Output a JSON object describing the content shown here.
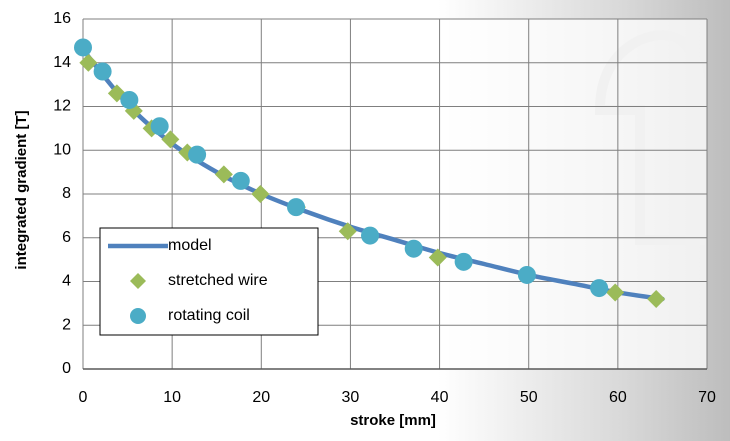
{
  "chart_data": {
    "type": "scatter",
    "x_label": "stroke [mm]",
    "y_label": "integrated gradient [T]",
    "xlim": [
      0,
      70
    ],
    "xticks": [
      0,
      10,
      20,
      30,
      40,
      50,
      60,
      70
    ],
    "ylim": [
      0,
      16
    ],
    "yticks": [
      0,
      2,
      4,
      6,
      8,
      10,
      12,
      14,
      16
    ],
    "grid": true,
    "legend": "lower left",
    "series": [
      {
        "name": "model",
        "color": "#4f81bd",
        "marker": "line",
        "x": [
          0,
          5,
          10,
          15,
          20,
          25,
          30,
          35,
          40,
          45,
          50,
          55,
          60,
          65
        ],
        "values": [
          14.6,
          12.1,
          10.3,
          9.0,
          8.0,
          7.2,
          6.5,
          5.9,
          5.3,
          4.8,
          4.3,
          3.9,
          3.5,
          3.2
        ]
      },
      {
        "name": "stretched wire",
        "color": "#9bbb59",
        "marker": "diamond",
        "x": [
          0.6,
          3.8,
          5.7,
          7.7,
          9.8,
          11.7,
          15.8,
          19.9,
          24.0,
          29.7,
          39.8,
          59.7,
          64.3
        ],
        "values": [
          14.0,
          12.6,
          11.8,
          11.0,
          10.5,
          9.9,
          8.9,
          8.0,
          7.4,
          6.3,
          5.1,
          3.5,
          3.2
        ]
      },
      {
        "name": "rotating coil",
        "color": "#4bacc6",
        "marker": "circle",
        "x": [
          0,
          2.2,
          5.2,
          8.6,
          12.8,
          17.7,
          23.9,
          32.2,
          37.1,
          42.7,
          49.8,
          57.9
        ],
        "values": [
          14.7,
          13.6,
          12.3,
          11.1,
          9.8,
          8.6,
          7.4,
          6.1,
          5.5,
          4.9,
          4.3,
          3.7
        ]
      }
    ]
  }
}
